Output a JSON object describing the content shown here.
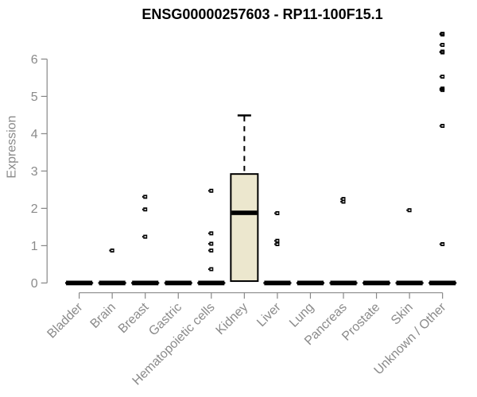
{
  "chart_data": {
    "type": "box",
    "title": "ENSG00000257603 - RP11-100F15.1",
    "xlabel": "",
    "ylabel": "Expression",
    "y_ticks": [
      0,
      1,
      2,
      3,
      4,
      5,
      6
    ],
    "ylim": [
      0,
      6.7
    ],
    "grid": false,
    "categories": [
      "Bladder",
      "Brain",
      "Breast",
      "Gastric",
      "Hematopoietic cells",
      "Kidney",
      "Liver",
      "Lung",
      "Pancreas",
      "Prostate",
      "Skin",
      "Unknown / Other"
    ],
    "boxes": [
      {
        "category": "Bladder",
        "q1": 0,
        "median": 0,
        "q3": 0,
        "whisker_high": 0,
        "outliers": []
      },
      {
        "category": "Brain",
        "q1": 0,
        "median": 0,
        "q3": 0,
        "whisker_high": 0,
        "outliers": [
          0.87
        ]
      },
      {
        "category": "Breast",
        "q1": 0,
        "median": 0,
        "q3": 0,
        "whisker_high": 0,
        "outliers": [
          2.31,
          1.97,
          1.24
        ]
      },
      {
        "category": "Gastric",
        "q1": 0,
        "median": 0,
        "q3": 0,
        "whisker_high": 0,
        "outliers": []
      },
      {
        "category": "Hematopoietic cells",
        "q1": 0,
        "median": 0,
        "q3": 0,
        "whisker_high": 0,
        "outliers": [
          2.47,
          1.33,
          1.05,
          0.87,
          0.37
        ]
      },
      {
        "category": "Kidney",
        "q1": 0.05,
        "median": 1.88,
        "q3": 2.92,
        "whisker_high": 4.49,
        "outliers": []
      },
      {
        "category": "Liver",
        "q1": 0,
        "median": 0,
        "q3": 0,
        "whisker_high": 0,
        "outliers": [
          1.87,
          1.13,
          1.04
        ]
      },
      {
        "category": "Lung",
        "q1": 0,
        "median": 0,
        "q3": 0,
        "whisker_high": 0,
        "outliers": []
      },
      {
        "category": "Pancreas",
        "q1": 0,
        "median": 0,
        "q3": 0,
        "whisker_high": 0,
        "outliers": [
          2.25,
          2.18
        ]
      },
      {
        "category": "Prostate",
        "q1": 0,
        "median": 0,
        "q3": 0,
        "whisker_high": 0,
        "outliers": []
      },
      {
        "category": "Skin",
        "q1": 0,
        "median": 0,
        "q3": 0,
        "whisker_high": 0,
        "outliers": [
          1.95
        ]
      },
      {
        "category": "Unknown / Other",
        "q1": 0,
        "median": 0,
        "q3": 0,
        "whisker_high": 0,
        "outliers": [
          6.68,
          6.66,
          6.38,
          6.2,
          6.18,
          5.53,
          5.21,
          5.17,
          4.21,
          1.04
        ]
      }
    ],
    "colors": {
      "background": "#ffffff",
      "title": "#000000",
      "axis": "#878787",
      "tick_label": "#8a8a8a",
      "box_fill": "#ece7ce",
      "box_border": "#000000",
      "median": "#000000",
      "outlier": "#000000"
    },
    "legend": null
  }
}
